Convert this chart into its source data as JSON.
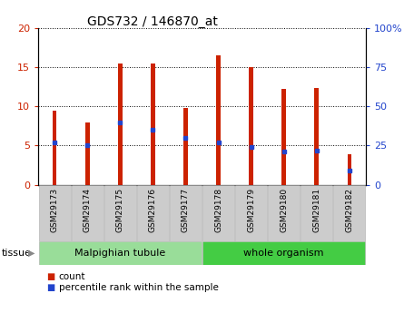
{
  "title": "GDS732 / 146870_at",
  "samples": [
    "GSM29173",
    "GSM29174",
    "GSM29175",
    "GSM29176",
    "GSM29177",
    "GSM29178",
    "GSM29179",
    "GSM29180",
    "GSM29181",
    "GSM29182"
  ],
  "counts": [
    9.5,
    7.9,
    15.5,
    15.5,
    9.8,
    16.5,
    15.0,
    12.2,
    12.3,
    3.9
  ],
  "percentile_ranks": [
    27,
    25,
    40,
    35,
    30,
    27,
    24,
    21,
    22,
    9
  ],
  "ylim_left": [
    0,
    20
  ],
  "ylim_right": [
    0,
    100
  ],
  "yticks_left": [
    0,
    5,
    10,
    15,
    20
  ],
  "yticks_right": [
    0,
    25,
    50,
    75,
    100
  ],
  "ytick_labels_left": [
    "0",
    "5",
    "10",
    "15",
    "20"
  ],
  "ytick_labels_right": [
    "0",
    "25",
    "50",
    "75",
    "100%"
  ],
  "bar_color": "#cc2200",
  "percentile_color": "#2244cc",
  "tissue_groups": [
    {
      "label": "Malpighian tubule",
      "n_samples": 5,
      "color": "#99dd99"
    },
    {
      "label": "whole organism",
      "n_samples": 5,
      "color": "#44cc44"
    }
  ],
  "legend_count_label": "count",
  "legend_percentile_label": "percentile rank within the sample",
  "tissue_label": "tissue",
  "tick_label_bg": "#cccccc",
  "bar_width": 0.12
}
